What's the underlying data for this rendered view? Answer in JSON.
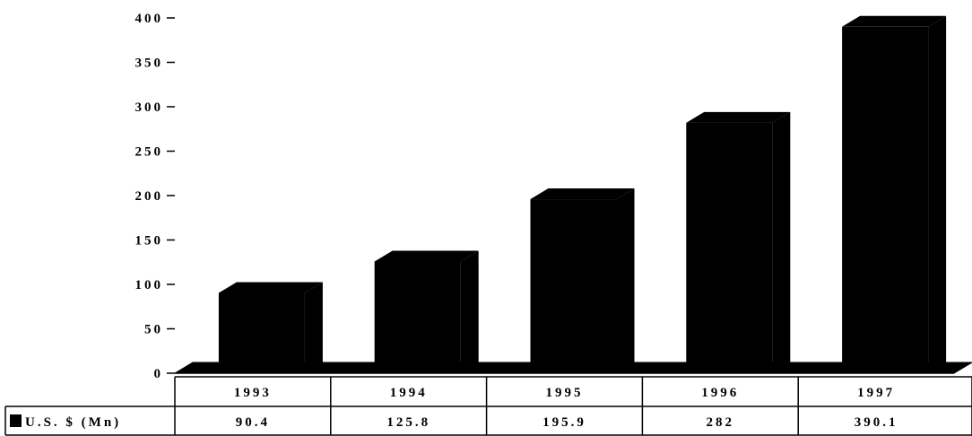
{
  "chart_data": {
    "type": "bar",
    "categories": [
      "1993",
      "1994",
      "1995",
      "1996",
      "1997"
    ],
    "series": [
      {
        "name": "U.S. $ (Mn)",
        "values": [
          90.4,
          125.8,
          195.9,
          282,
          390.1
        ]
      }
    ],
    "data_labels": [
      "90.4",
      "125.8",
      "195.9",
      "282",
      "390.1"
    ],
    "yticks": [
      0,
      50,
      100,
      150,
      200,
      250,
      300,
      350,
      400
    ],
    "ylim": [
      0,
      400
    ],
    "title": "",
    "xlabel": "",
    "ylabel": "",
    "grid": false,
    "legend": "data table, left",
    "bar_color": "#000000"
  }
}
